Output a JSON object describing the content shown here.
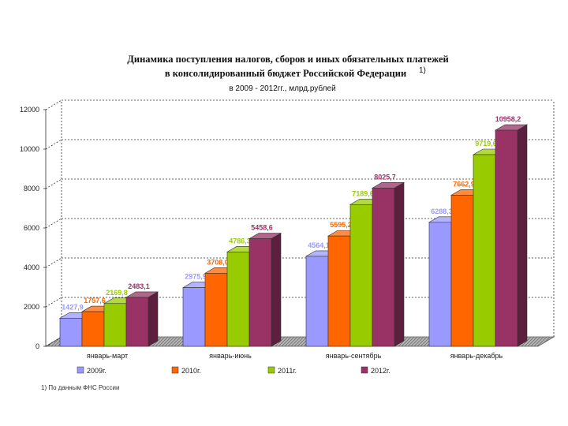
{
  "chart_data": {
    "type": "bar",
    "title_line1": "Динамика поступления налогов, сборов и иных обязательных платежей",
    "title_line2": "в консолидированный бюджет Российской Федерации",
    "title_superscript": "1)",
    "subtitle": "в 2009 - 2012гг., млрд.рублей",
    "categories": [
      "январь-март",
      "январь-июнь",
      "январь-сентябрь",
      "январь-декабрь"
    ],
    "series": [
      {
        "name": "2009г.",
        "color": "#9999ff",
        "label_color": "#9999ff",
        "values": [
          1427.9,
          2975.9,
          4564.1,
          6288.3
        ],
        "labels": [
          "1427,9",
          "2975,9",
          "4564,1",
          "6288,3"
        ]
      },
      {
        "name": "2010г.",
        "color": "#ff6600",
        "label_color": "#ff6600",
        "values": [
          1757.6,
          3708.0,
          5595.2,
          7662.9
        ],
        "labels": [
          "1757,6",
          "3708,0",
          "5595,2",
          "7662,9"
        ]
      },
      {
        "name": "2011г.",
        "color": "#99cc00",
        "label_color": "#99cc00",
        "values": [
          2169.8,
          4786.3,
          7189.6,
          9719.6
        ],
        "labels": [
          "2169,8",
          "4786,3",
          "7189,6",
          "9719,6"
        ]
      },
      {
        "name": "2012г.",
        "color": "#993366",
        "label_color": "#993366",
        "values": [
          2483.1,
          5458.6,
          8025.7,
          10958.2
        ],
        "labels": [
          "2483,1",
          "5458,6",
          "8025,7",
          "10958,2"
        ]
      }
    ],
    "ylim": [
      0,
      12000
    ],
    "yticks": [
      0,
      2000,
      4000,
      6000,
      8000,
      10000,
      12000
    ],
    "grid": true,
    "legend_position": "bottom",
    "footnote": "1) По данным ФНС России"
  }
}
